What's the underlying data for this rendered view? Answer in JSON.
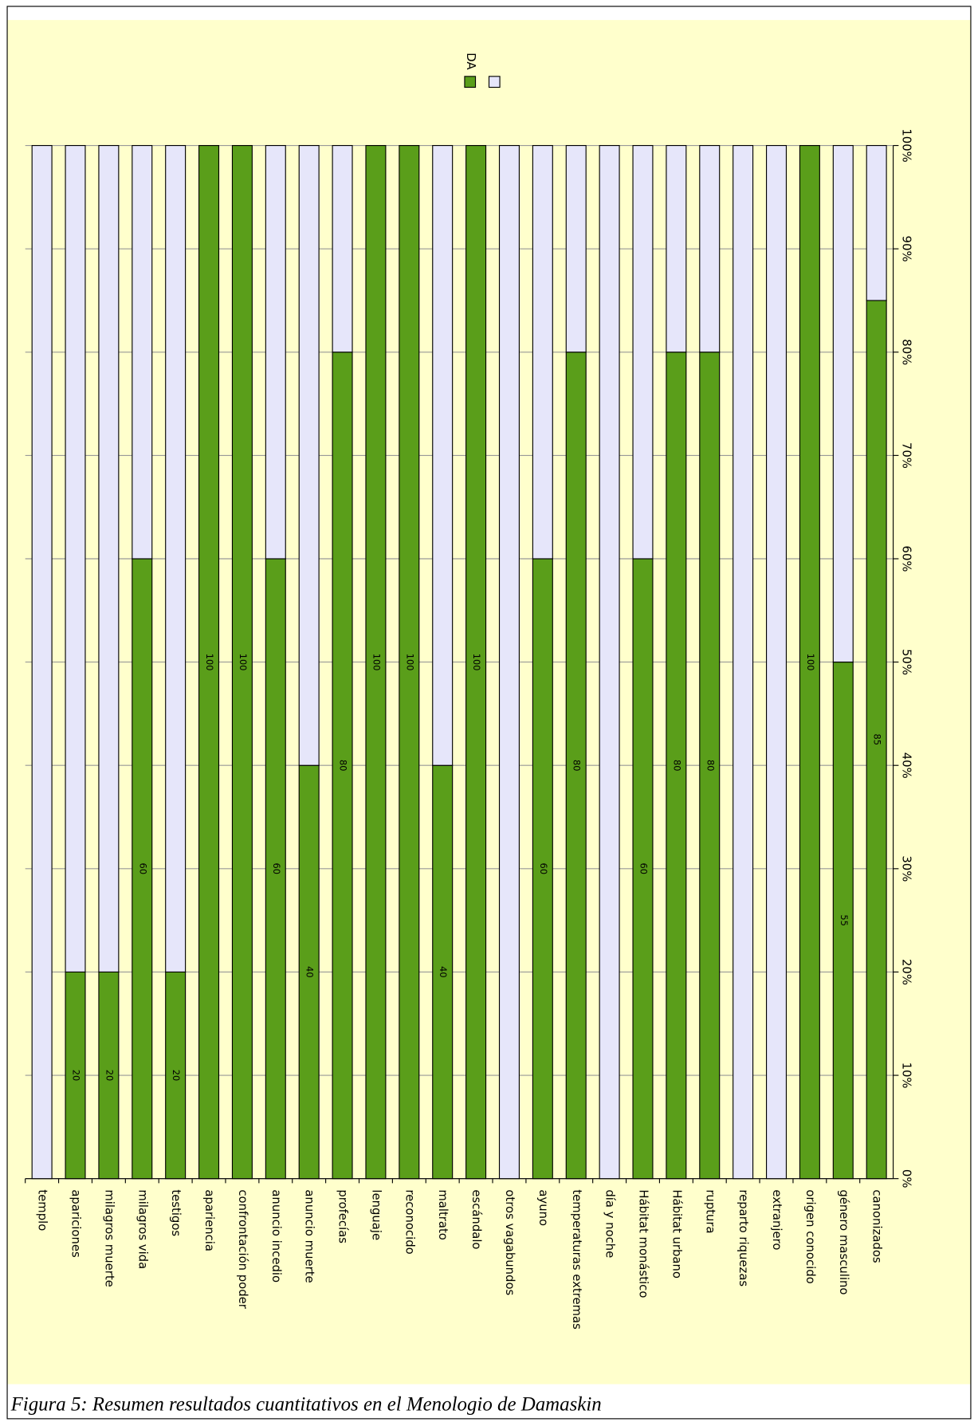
{
  "chart_data": {
    "type": "bar",
    "stacking": "percent",
    "caption": "Figura 5: Resumen resultados cuantitativos en el Menologio de Damaskin",
    "categories": [
      "templo",
      "apariciones",
      "milagros muerte",
      "milagros vida",
      "testigos",
      "apariencia",
      "confrontación poder",
      "anuncio incedio",
      "anuncio muerte",
      "profecías",
      "lenguaje",
      "reconocido",
      "maltrato",
      "escándalo",
      "otros vagabundos",
      "ayuno",
      "temperaturas extremas",
      "día y noche",
      "Hábitat monástico",
      "Hábitat urbano",
      "ruptura",
      "reparto riquezas",
      "extranjero",
      "origen conocido",
      "género masculino",
      "canonizados"
    ],
    "series": [
      {
        "name": "DA",
        "color": "#5a9e1a",
        "values": [
          0,
          20,
          20,
          60,
          20,
          100,
          100,
          60,
          40,
          80,
          100,
          100,
          40,
          100,
          0,
          60,
          80,
          0,
          60,
          80,
          80,
          0,
          0,
          100,
          55,
          85
        ]
      },
      {
        "color": "#e6e6fa",
        "values": [
          100,
          80,
          80,
          40,
          80,
          0,
          0,
          40,
          60,
          20,
          0,
          0,
          60,
          0,
          100,
          40,
          20,
          100,
          40,
          20,
          20,
          100,
          100,
          0,
          55,
          15
        ]
      }
    ],
    "ylim": [
      0,
      100
    ],
    "yticks": [
      {
        "value": 0,
        "label": "0%"
      },
      {
        "value": 10,
        "label": "10%"
      },
      {
        "value": 20,
        "label": "20%"
      },
      {
        "value": 30,
        "label": "30%"
      },
      {
        "value": 40,
        "label": "40%"
      },
      {
        "value": 50,
        "label": "50%"
      },
      {
        "value": 60,
        "label": "60%"
      },
      {
        "value": 70,
        "label": "70%"
      },
      {
        "value": 80,
        "label": "80%"
      },
      {
        "value": 90,
        "label": "90%"
      },
      {
        "value": 100,
        "label": "100%"
      }
    ],
    "grid": true,
    "legend": "top"
  }
}
